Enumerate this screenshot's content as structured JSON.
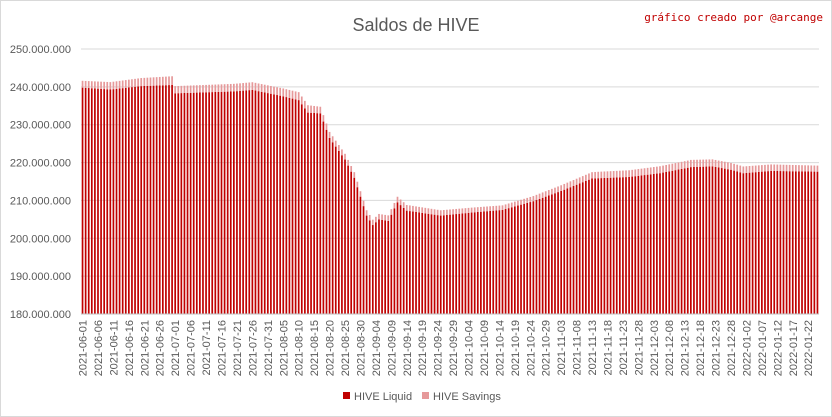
{
  "credit": "gráfico creado por @arcange",
  "chart_data": {
    "type": "bar",
    "stacked": true,
    "title": "Saldos de HIVE",
    "xlabel": "",
    "ylabel": "",
    "ylim": [
      180000000,
      250000000
    ],
    "grid": true,
    "legend_position": "bottom",
    "y_ticks": [
      "180.000.000",
      "190.000.000",
      "200.000.000",
      "210.000.000",
      "220.000.000",
      "230.000.000",
      "240.000.000",
      "250.000.000"
    ],
    "x_ticks": [
      "2021-06-01",
      "2021-06-06",
      "2021-06-11",
      "2021-06-16",
      "2021-06-21",
      "2021-06-26",
      "2021-07-01",
      "2021-07-06",
      "2021-07-11",
      "2021-07-16",
      "2021-07-21",
      "2021-07-26",
      "2021-07-31",
      "2021-08-05",
      "2021-08-10",
      "2021-08-15",
      "2021-08-20",
      "2021-08-25",
      "2021-08-30",
      "2021-09-04",
      "2021-09-09",
      "2021-09-14",
      "2021-09-19",
      "2021-09-24",
      "2021-09-29",
      "2021-10-04",
      "2021-10-09",
      "2021-10-14",
      "2021-10-19",
      "2021-10-24",
      "2021-10-29",
      "2021-11-03",
      "2021-11-08",
      "2021-11-13",
      "2021-11-18",
      "2021-11-23",
      "2021-11-28",
      "2021-12-03",
      "2021-12-08",
      "2021-12-13",
      "2021-12-18",
      "2021-12-23",
      "2021-12-28",
      "2022-01-02",
      "2022-01-07",
      "2022-01-12",
      "2022-01-17",
      "2022-01-22"
    ],
    "first_date": "2021-06-01",
    "last_date": "2022-01-25",
    "series": [
      {
        "name": "HIVE Liquid",
        "color": "#c00000"
      },
      {
        "name": "HIVE Savings",
        "color": "#e6999a"
      }
    ],
    "liquid_keypoints": [
      {
        "date": "2021-06-01",
        "value": 239800000
      },
      {
        "date": "2021-06-10",
        "value": 239300000
      },
      {
        "date": "2021-06-20",
        "value": 240200000
      },
      {
        "date": "2021-06-30",
        "value": 240500000
      },
      {
        "date": "2021-07-01",
        "value": 238300000
      },
      {
        "date": "2021-07-20",
        "value": 238800000
      },
      {
        "date": "2021-07-26",
        "value": 239200000
      },
      {
        "date": "2021-08-05",
        "value": 237500000
      },
      {
        "date": "2021-08-10",
        "value": 236500000
      },
      {
        "date": "2021-08-13",
        "value": 233200000
      },
      {
        "date": "2021-08-17",
        "value": 233000000
      },
      {
        "date": "2021-08-20",
        "value": 226500000
      },
      {
        "date": "2021-08-25",
        "value": 220800000
      },
      {
        "date": "2021-08-28",
        "value": 216000000
      },
      {
        "date": "2021-09-01",
        "value": 206000000
      },
      {
        "date": "2021-09-03",
        "value": 203500000
      },
      {
        "date": "2021-09-05",
        "value": 205000000
      },
      {
        "date": "2021-09-08",
        "value": 204600000
      },
      {
        "date": "2021-09-11",
        "value": 209500000
      },
      {
        "date": "2021-09-14",
        "value": 207300000
      },
      {
        "date": "2021-09-25",
        "value": 206000000
      },
      {
        "date": "2021-10-05",
        "value": 206800000
      },
      {
        "date": "2021-10-15",
        "value": 207500000
      },
      {
        "date": "2021-10-25",
        "value": 209800000
      },
      {
        "date": "2021-11-03",
        "value": 212500000
      },
      {
        "date": "2021-11-13",
        "value": 215800000
      },
      {
        "date": "2021-11-25",
        "value": 216200000
      },
      {
        "date": "2021-12-05",
        "value": 217200000
      },
      {
        "date": "2021-12-15",
        "value": 218800000
      },
      {
        "date": "2021-12-22",
        "value": 219000000
      },
      {
        "date": "2021-12-28",
        "value": 218100000
      },
      {
        "date": "2022-01-01",
        "value": 217200000
      },
      {
        "date": "2022-01-10",
        "value": 217800000
      },
      {
        "date": "2022-01-25",
        "value": 217600000
      }
    ],
    "savings_keypoints": [
      {
        "date": "2021-06-01",
        "value": 1800000
      },
      {
        "date": "2021-06-30",
        "value": 2300000
      },
      {
        "date": "2021-07-01",
        "value": 1900000
      },
      {
        "date": "2021-08-10",
        "value": 2100000
      },
      {
        "date": "2021-08-20",
        "value": 1600000
      },
      {
        "date": "2021-09-01",
        "value": 1400000
      },
      {
        "date": "2021-09-15",
        "value": 1500000
      },
      {
        "date": "2021-10-15",
        "value": 1200000
      },
      {
        "date": "2021-11-15",
        "value": 1700000
      },
      {
        "date": "2021-12-15",
        "value": 1900000
      },
      {
        "date": "2022-01-25",
        "value": 1600000
      }
    ]
  }
}
